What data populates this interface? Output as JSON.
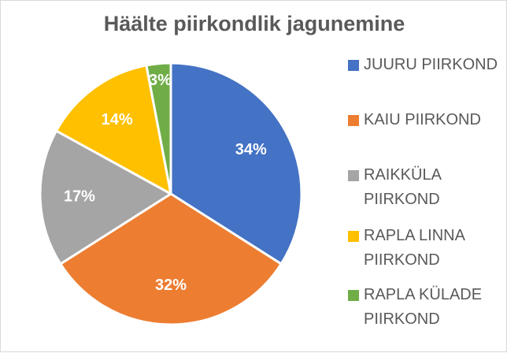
{
  "chart_data": {
    "type": "pie",
    "title": "Häälte piirkondlik jagunemine",
    "slices": [
      {
        "label": "JUURU PIIRKOND",
        "value": 34,
        "value_label": "34%",
        "color": "#4472C4"
      },
      {
        "label": "KAIU PIIRKOND",
        "value": 32,
        "value_label": "32%",
        "color": "#ED7D31"
      },
      {
        "label": "RAIKKÜLA PIIRKOND",
        "value": 17,
        "value_label": "17%",
        "color": "#A5A5A5"
      },
      {
        "label": "RAPLA LINNA PIIRKOND",
        "value": 14,
        "value_label": "14%",
        "color": "#FFC000"
      },
      {
        "label": "RAPLA KÜLADE PIIRKOND",
        "value": 3,
        "value_label": "3%",
        "color": "#70AD47"
      }
    ],
    "legend_position": "right",
    "data_labels": "inside"
  }
}
